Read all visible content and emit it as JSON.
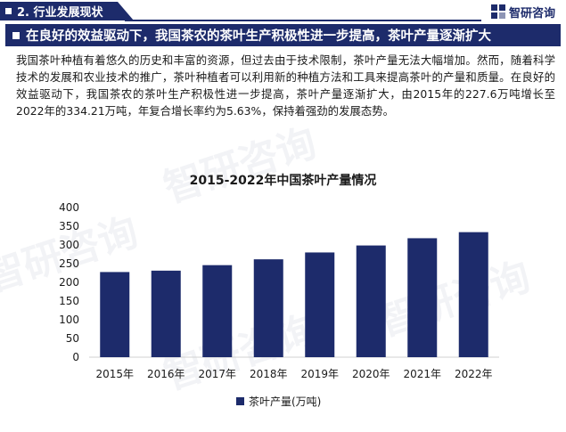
{
  "header": {
    "section_label": "2. 行业发展现状",
    "brand_name": "智研咨询"
  },
  "headline": "在良好的效益驱动下，我国茶农的茶叶生产积极性进一步提高，茶叶产量逐渐扩大",
  "paragraph": "我国茶叶种植有着悠久的历史和丰富的资源，但过去由于技术限制，茶叶产量无法大幅增加。然而，随着科学技术的发展和农业技术的推广，茶叶种植者可以利用新的种植方法和工具来提高茶叶的产量和质量。在良好的效益驱动下，我国茶农的茶叶生产积极性进一步提高，茶叶产量逐渐扩大，由2015年的227.6万吨增长至2022年的334.21万吨，年复合增长率约为5.63%，保持着强劲的发展态势。",
  "watermark": "智研咨询",
  "colors": {
    "primary": "#1d2b6b"
  },
  "chart_data": {
    "type": "bar",
    "title": "2015-2022年中国茶叶产量情况",
    "categories": [
      "2015年",
      "2016年",
      "2017年",
      "2018年",
      "2019年",
      "2020年",
      "2021年",
      "2022年"
    ],
    "series": [
      {
        "name": "茶叶产量(万吨)",
        "values": [
          227.6,
          231.3,
          246.0,
          261.6,
          279.9,
          298.6,
          318.0,
          334.21
        ]
      }
    ],
    "yticks": [
      0,
      50,
      100,
      150,
      200,
      250,
      300,
      350,
      400
    ],
    "ylim": [
      0,
      400
    ],
    "grid": false,
    "legend_position": "bottom"
  }
}
